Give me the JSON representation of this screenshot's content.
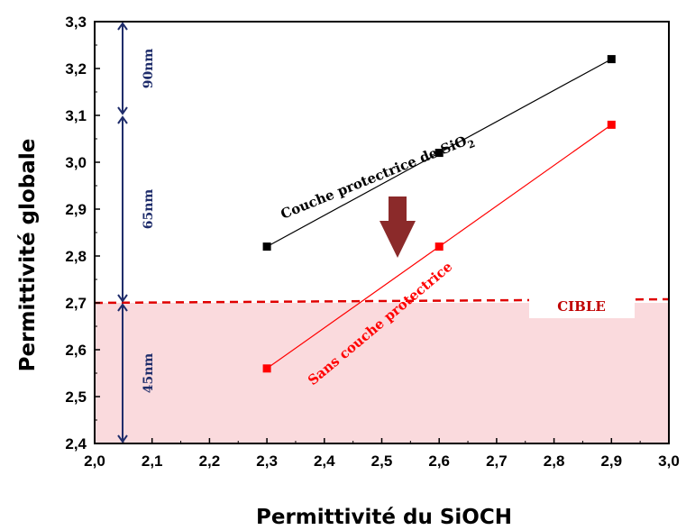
{
  "chart_data": {
    "type": "line",
    "xlabel": "Permittivité du SiOCH",
    "ylabel": "Permittivité globale",
    "xlim": [
      2.0,
      3.0
    ],
    "ylim": [
      2.4,
      3.3
    ],
    "xticks": [
      "2,0",
      "2,1",
      "2,2",
      "2,3",
      "2,4",
      "2,5",
      "2,6",
      "2,7",
      "2,8",
      "2,9",
      "3,0"
    ],
    "yticks": [
      "2,4",
      "2,5",
      "2,6",
      "2,7",
      "2,8",
      "2,9",
      "3,0",
      "3,1",
      "3,2",
      "3,3"
    ],
    "series": [
      {
        "name": "Couche protectrice de SiO",
        "name_subscript": "2",
        "color": "#000000",
        "x": [
          2.3,
          2.6,
          2.9
        ],
        "y": [
          2.82,
          3.02,
          3.22
        ]
      },
      {
        "name": "Sans couche protectrice",
        "color": "#ff0000",
        "x": [
          2.3,
          2.6,
          2.9
        ],
        "y": [
          2.56,
          2.82,
          3.08
        ]
      }
    ],
    "target": {
      "label": "CIBLE",
      "y": 2.7,
      "color": "#e00000",
      "fill": "#fadadd"
    },
    "regions": [
      {
        "label": "90nm",
        "y": [
          3.1,
          3.3
        ]
      },
      {
        "label": "65nm",
        "y": [
          2.7,
          3.1
        ]
      },
      {
        "label": "45nm",
        "y": [
          2.4,
          2.7
        ]
      }
    ],
    "arrow": {
      "color": "#8b2a2a",
      "direction": "down"
    },
    "grid": false
  }
}
